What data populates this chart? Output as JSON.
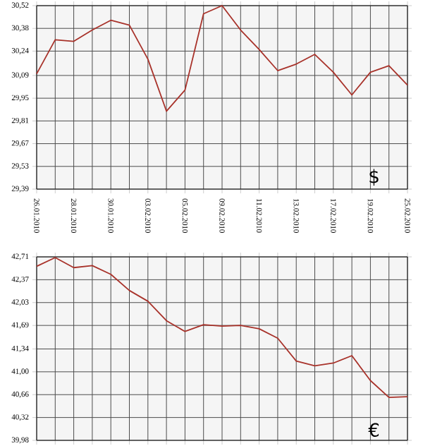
{
  "chart_data": [
    {
      "type": "line",
      "categories": [
        "26.01.2010",
        null,
        "28.01.2010",
        null,
        "30.01.2010",
        null,
        "03.02.2010",
        null,
        "05.02.2010",
        null,
        "09.02.2010",
        null,
        "11.02.2010",
        null,
        "13.02.2010",
        null,
        "17.02.2010",
        null,
        "19.02.2010",
        null,
        "25.02.2010"
      ],
      "series": [
        {
          "color": "#a8322a",
          "values": [
            30.1,
            30.31,
            30.3,
            30.37,
            30.43,
            30.4,
            30.19,
            29.87,
            30.0,
            30.47,
            30.52,
            30.37,
            30.25,
            30.12,
            30.16,
            30.22,
            30.11,
            29.97,
            30.11,
            30.15,
            30.03
          ]
        }
      ],
      "ylim": [
        29.39,
        30.52
      ],
      "yticks": [
        {
          "value": 29.39,
          "label": "29,39"
        },
        {
          "value": 29.53,
          "label": "29,53"
        },
        {
          "value": 29.67,
          "label": "29,67"
        },
        {
          "value": 29.81,
          "label": "29,81"
        },
        {
          "value": 29.95,
          "label": "29,95"
        },
        {
          "value": 30.09,
          "label": "30,09"
        },
        {
          "value": 30.24,
          "label": "30,24"
        },
        {
          "value": 30.38,
          "label": "30,38"
        },
        {
          "value": 30.52,
          "label": "30,52"
        }
      ],
      "grid": true,
      "annotations": [
        "$"
      ]
    },
    {
      "type": "line",
      "categories": [
        "26.01.2010",
        null,
        "28.01.2010",
        null,
        "30.01.2010",
        null,
        "03.02.2010",
        null,
        "05.02.2010",
        null,
        "09.02.2010",
        null,
        "11.02.2010",
        null,
        "13.02.2010",
        null,
        "17.02.2010",
        null,
        "19.02.2010",
        null,
        "25.02.2010"
      ],
      "series": [
        {
          "color": "#a8322a",
          "values": [
            42.57,
            42.7,
            42.55,
            42.58,
            42.45,
            42.21,
            42.05,
            41.76,
            41.6,
            41.7,
            41.68,
            41.69,
            41.64,
            41.5,
            41.16,
            41.09,
            41.13,
            41.24,
            40.87,
            40.62,
            40.63
          ]
        }
      ],
      "ylim": [
        39.98,
        42.71
      ],
      "yticks": [
        {
          "value": 39.98,
          "label": "39,98"
        },
        {
          "value": 40.32,
          "label": "40,32"
        },
        {
          "value": 40.66,
          "label": "40,66"
        },
        {
          "value": 41.0,
          "label": "41,00"
        },
        {
          "value": 41.34,
          "label": "41,34"
        },
        {
          "value": 41.69,
          "label": "41,69"
        },
        {
          "value": 42.03,
          "label": "42,03"
        },
        {
          "value": 42.37,
          "label": "42,37"
        },
        {
          "value": 42.71,
          "label": "42,71"
        }
      ],
      "grid": true,
      "tick_labels": "y",
      "annotations": [
        "€"
      ]
    }
  ]
}
